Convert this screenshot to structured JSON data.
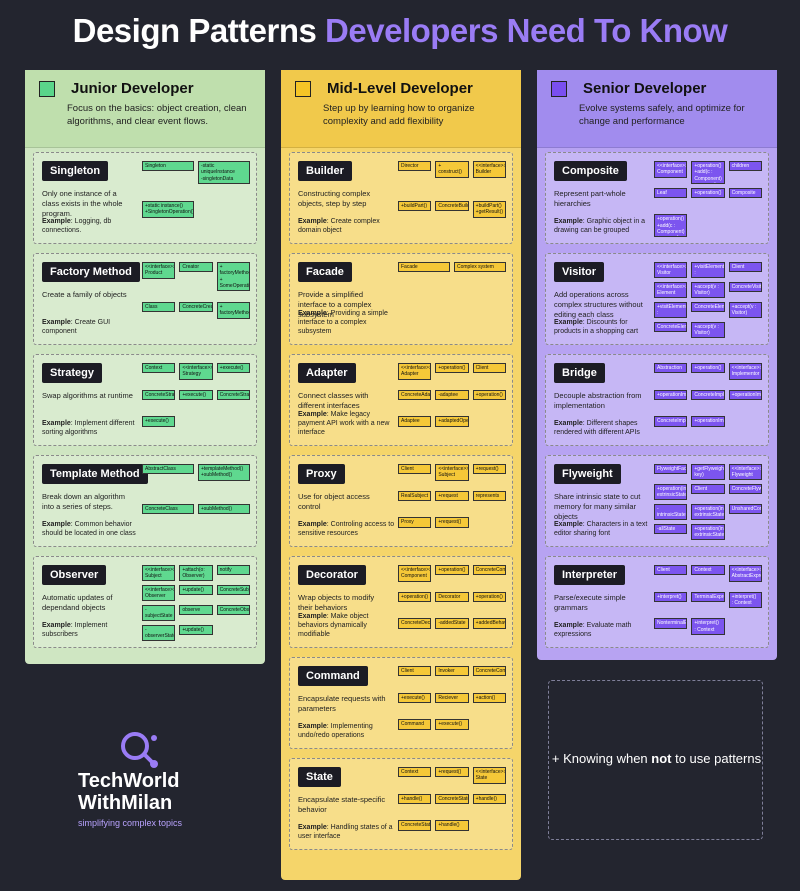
{
  "title": {
    "white": "Design Patterns ",
    "purple": "Developers Need To Know"
  },
  "columns": {
    "junior": {
      "level": "Junior Developer",
      "desc": "Focus on the basics: object creation, clean algorithms, and clear event flows.",
      "cards": [
        {
          "name": "Singleton",
          "sub": "Only one instance of a class exists in the whole program.",
          "ex": "Logging, db connections.",
          "uml": [
            "Singleton",
            "-static uniqueInstance\n-singletonData",
            "+static instance()\n+SingletonOperation()"
          ]
        },
        {
          "name": "Factory Method",
          "sub": "Create a family of objects",
          "ex": "Create GUI component",
          "uml": [
            "<<interface>>\nProduct",
            "Creator",
            "+ factoryMethod()\n+ SomeOperation()",
            "Class",
            "ConcreteCreator",
            "+ factoryMethod()"
          ]
        },
        {
          "name": "Strategy",
          "sub": "Swap algorithms at runtime",
          "ex": "Implement different sorting algorithms",
          "uml": [
            "Context",
            "<<interface>>\nStrategy",
            "+execute()",
            "ConcreteStrategyA",
            "+execute()",
            "ConcreteStrategyB",
            "+execute()"
          ]
        },
        {
          "name": "Template Method",
          "sub": "Break down an algorithm into a series of steps.",
          "ex": "Common behavior should be located in one class",
          "uml": [
            "AbstractClass",
            "+templateMethod()\n+subMethod()",
            "ConcreteClass",
            "+subMethod()"
          ]
        },
        {
          "name": "Observer",
          "sub": "Automatic updates of dependand objects",
          "ex": "Implement subscribers",
          "uml": [
            "<<interface>>\nSubject",
            "+attach(o: Observer)\n+detach(o: Observer)\n+notify()",
            "notify",
            "<<interface>>\nObserver",
            "+update()",
            "ConcreteSubject",
            "-subjectState",
            "observe",
            "ConcreteObserve",
            "-observerState",
            "+update()"
          ]
        }
      ]
    },
    "mid": {
      "level": "Mid-Level Developer",
      "desc": "Step up by learning how to organize complexity and add flexibility",
      "cards": [
        {
          "name": "Builder",
          "sub": "Constructing complex objects, step by step",
          "ex": "Create complex domain object",
          "uml": [
            "Director",
            "+ construct()",
            "<<interface>>\nBuilder",
            "+buildPart()",
            "ConcreteBuilder",
            "+buildPart()\n+getResult()"
          ]
        },
        {
          "name": "Facade",
          "sub": "Provide a simplified interface to a complex subsystem",
          "ex": "Providing a simple interface to a complex subsystem",
          "uml": [
            "Facade",
            "Complex system"
          ]
        },
        {
          "name": "Adapter",
          "sub": "Connect classes with different interfaces",
          "ex": "Make legacy payment API work with a new interface",
          "uml": [
            "<<interface>>\nAdapter",
            "+operation()",
            "Client",
            "ConcreteAdapter",
            "-adaptee",
            "+operation()",
            "Adaptee",
            "+adaptedOperation()"
          ]
        },
        {
          "name": "Proxy",
          "sub": "Use for object access control",
          "ex": "Controling access to sensitive resources",
          "uml": [
            "Client",
            "<<interface>>\nSubject",
            "+request()",
            "RealSubject",
            "+request",
            "represents",
            "Proxy",
            "+request()"
          ]
        },
        {
          "name": "Decorator",
          "sub": "Wrap objects to modify their behaviors",
          "ex": "Make object behaviors dynamically modifiable",
          "uml": [
            "<<interface>>\nComponent",
            "+operation()",
            "ConcreteComponent",
            "+operation()",
            "Decorator",
            "+operation()",
            "ConcreteDecorator",
            "-addedState",
            "+addedBehavior()"
          ]
        },
        {
          "name": "Command",
          "sub": "Encapsulate requests with parameters",
          "ex": "Implementing undo/redo operations",
          "uml": [
            "Client",
            "Invoker",
            "ConcreteCommand",
            "+execute()",
            "Reciever",
            "+action()",
            "Command",
            "+execute()"
          ]
        },
        {
          "name": "State",
          "sub": "Encapsulate state-specific behavior",
          "ex": "Handling states of a user interface",
          "uml": [
            "Context",
            "+request()",
            "<<interface>>\nState",
            "+handle()",
            "ConcreteState1",
            "+handle()",
            "ConcreteState2",
            "+handle()"
          ]
        }
      ]
    },
    "senior": {
      "level": "Senior Developer",
      "desc": "Evolve systems safely, and optimize for change and performance",
      "cards": [
        {
          "name": "Composite",
          "sub": "Represent part-whole hierarchies",
          "ex": "Graphic object in a drawing can be grouped",
          "uml": [
            "<<interface>>\nComponent",
            "+operation()\n+add(c : Component)\n+remove(c : Component)\n+getChild(i : int)",
            "children",
            "Leaf",
            "+operation()",
            "Composite",
            "+operation()\n+add(c : Component)\n+remove(c : Component)\n+getChild(i : int)"
          ]
        },
        {
          "name": "Visitor",
          "sub": "Add operations across complex structures without editing each class",
          "ex": "Discounts for products in a shopping cart",
          "uml": [
            "<<interface>>\nVisitor",
            "+visitElementA(e : ConcreteElementA)\n+visitElementB(e : ConcreteElementB)",
            "Client",
            "<<interface>>\nElement",
            "+accept(v : Visitor)",
            "ConcreteVisitor",
            "+visitElementA(e : ConcreteElementA)\n+visitElementB(e : ConcreteElementB)",
            "ConcreteElementA",
            "+accept(v : Visitor)",
            "ConcreteElementB",
            "+accept(v : Visitor)"
          ]
        },
        {
          "name": "Bridge",
          "sub": "Decouple abstraction from implementation",
          "ex": "Different shapes rendered with different APIs",
          "uml": [
            "Abstraction",
            "+operation()",
            "<<interface>>\nImplementor",
            "+operationImpl()",
            "ConcreteImplementorA",
            "+operationImpl()",
            "ConcreteImplementorB",
            "+operationImpl()"
          ]
        },
        {
          "name": "Flyweight",
          "sub": "Share intrinsic state to cut memory for many similar objects",
          "ex": "Characters in a text editor sharing font",
          "uml": [
            "FlyweightFactory",
            "+getFlyweight(in key)",
            "<<interface>>\nFlyweight",
            "+operation(in extrinsicState)",
            "Client",
            "ConcreteFlyweight",
            "-intrinsicState",
            "+operation(in extrinsicState)",
            "UnsharedConcreteFlyweight",
            "-allState",
            "+operation(in extrinsicState)"
          ]
        },
        {
          "name": "Interpreter",
          "sub": "Parse/execute simple grammars",
          "ex": "Evaluate math expressions",
          "uml": [
            "Client",
            "Context",
            "<<interface>>\nAbstractExpression",
            "+interpret()",
            "TerminalExpression",
            "+interpret() : Context",
            "NonterminalExpression",
            "+interpret() : Context"
          ]
        }
      ]
    }
  },
  "knowing": {
    "pre": "+ Knowing when ",
    "bold": "not",
    "post": " to use patterns"
  },
  "logo": {
    "line1": "TechWorld",
    "line2": "WithMilan",
    "line3": "simplifying complex topics"
  },
  "example_label": "Example"
}
